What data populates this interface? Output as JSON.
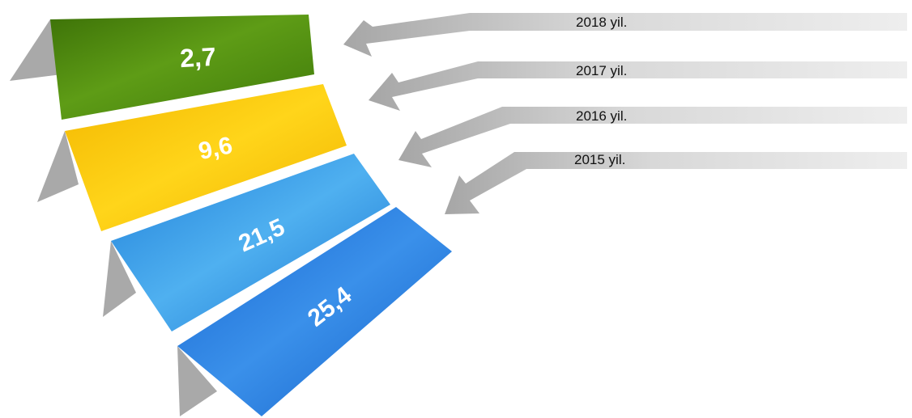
{
  "colors": {
    "green": "#4f8a10",
    "yellow": "#fcc500",
    "blue_light": "#2c8ee0",
    "blue": "#1f6fd8",
    "shadow": "#a9a9a9"
  },
  "steps": [
    {
      "value": "2,7",
      "year": "2018 yil.",
      "color": "green"
    },
    {
      "value": "9,6",
      "year": "2017 yil.",
      "color": "yellow"
    },
    {
      "value": "21,5",
      "year": "2016 yil.",
      "color": "blue_light"
    },
    {
      "value": "25,4",
      "year": "2015 yil.",
      "color": "blue"
    }
  ]
}
